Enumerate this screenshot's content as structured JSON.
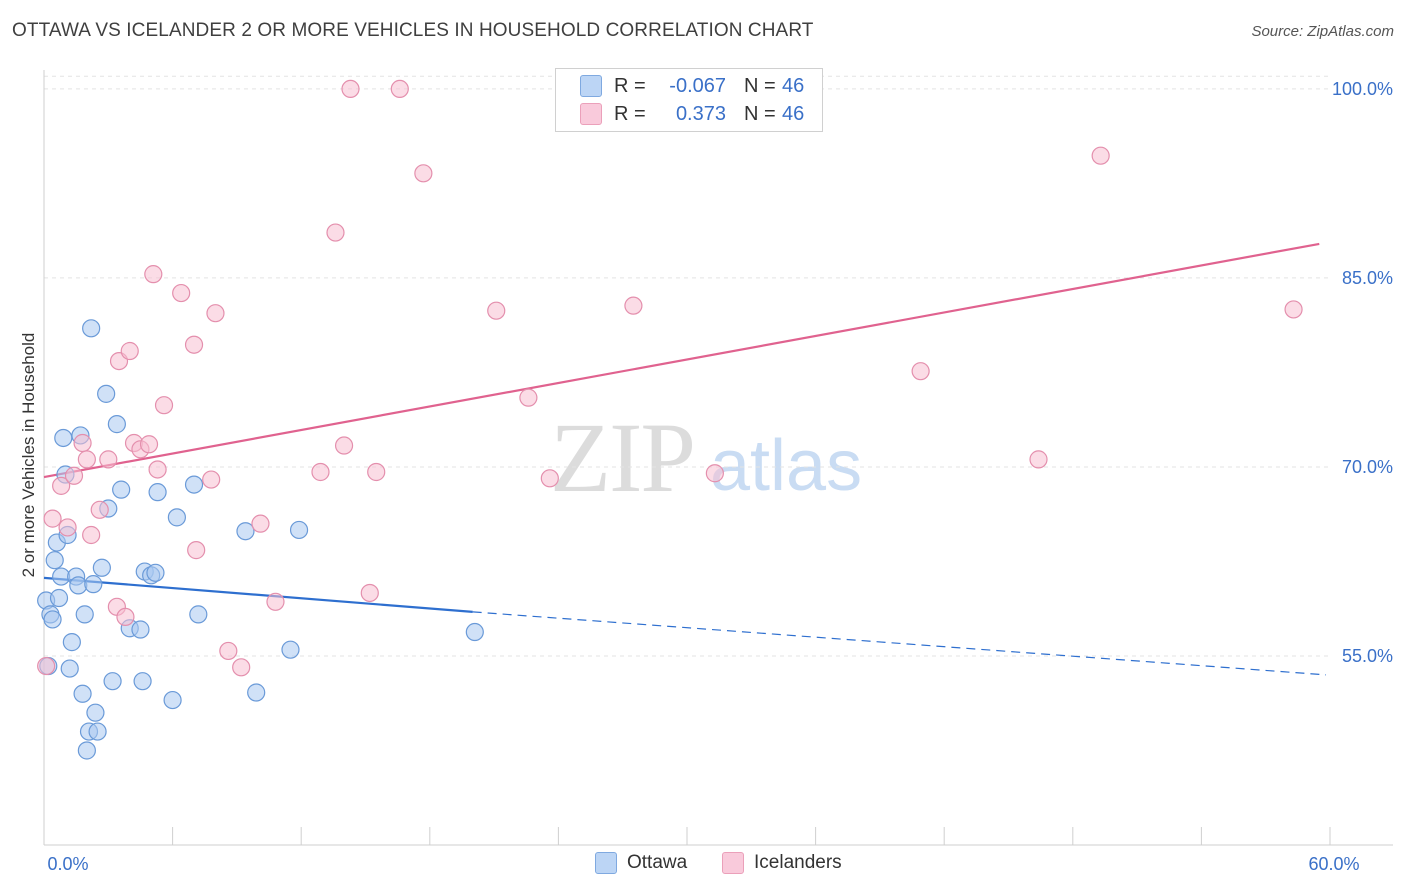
{
  "header": {
    "title": "OTTAWA VS ICELANDER 2 OR MORE VEHICLES IN HOUSEHOLD CORRELATION CHART",
    "source": "Source: ZipAtlas.com"
  },
  "watermark": {
    "zip": "ZIP",
    "atlas": "atlas"
  },
  "legend": {
    "r_label": "R =",
    "n_label": "N =",
    "rows": [
      {
        "r": "-0.067",
        "n": "46"
      },
      {
        "r": "0.373",
        "n": "46"
      }
    ]
  },
  "bottom_legend": {
    "items": [
      "Ottawa",
      "Icelanders"
    ]
  },
  "colors": {
    "ottawa_fill": "#a9c8f0",
    "ottawa_stroke": "#6a9ad8",
    "ottawa_line": "#2e6fcf",
    "icelanders_fill": "#f7c0d2",
    "icelanders_stroke": "#e48fad",
    "icelanders_line": "#e0628f",
    "tick_text": "#3a70c8"
  },
  "chart_data": {
    "type": "scatter",
    "title": "OTTAWA VS ICELANDER 2 OR MORE VEHICLES IN HOUSEHOLD CORRELATION CHART",
    "xlabel": "",
    "ylabel": "2 or more Vehicles in Household",
    "xlim": [
      0,
      60
    ],
    "ylim": [
      40,
      101.5
    ],
    "x_tick_labels": [
      {
        "value": 0,
        "label": "0.0%"
      },
      {
        "value": 60,
        "label": "60.0%"
      }
    ],
    "y_tick_labels": [
      {
        "value": 55,
        "label": "55.0%"
      },
      {
        "value": 70,
        "label": "70.0%"
      },
      {
        "value": 85,
        "label": "85.0%"
      },
      {
        "value": 100,
        "label": "100.0%"
      }
    ],
    "grid": true,
    "series": [
      {
        "name": "Ottawa",
        "r": -0.067,
        "n": 46,
        "trend": {
          "x0": 0,
          "y0": 61.2,
          "x1": 20.0,
          "y1": 58.5,
          "dash_to_x": 60,
          "dash_to_y": 53.5
        },
        "points": [
          [
            0.1,
            59.4
          ],
          [
            0.2,
            54.2
          ],
          [
            0.3,
            58.3
          ],
          [
            0.4,
            57.9
          ],
          [
            0.5,
            62.6
          ],
          [
            0.6,
            64.0
          ],
          [
            0.7,
            59.6
          ],
          [
            0.8,
            61.3
          ],
          [
            0.9,
            72.3
          ],
          [
            1.0,
            69.4
          ],
          [
            1.1,
            64.6
          ],
          [
            1.2,
            54.0
          ],
          [
            1.3,
            56.1
          ],
          [
            1.5,
            61.3
          ],
          [
            1.6,
            60.6
          ],
          [
            1.7,
            72.5
          ],
          [
            1.8,
            52.0
          ],
          [
            1.9,
            58.3
          ],
          [
            2.0,
            47.5
          ],
          [
            2.1,
            49.0
          ],
          [
            2.2,
            81.0
          ],
          [
            2.3,
            60.7
          ],
          [
            2.4,
            50.5
          ],
          [
            2.5,
            49.0
          ],
          [
            2.7,
            62.0
          ],
          [
            2.9,
            75.8
          ],
          [
            3.0,
            66.7
          ],
          [
            3.2,
            53.0
          ],
          [
            3.4,
            73.4
          ],
          [
            3.6,
            68.2
          ],
          [
            4.0,
            57.2
          ],
          [
            4.5,
            57.1
          ],
          [
            4.6,
            53.0
          ],
          [
            4.7,
            61.7
          ],
          [
            5.0,
            61.4
          ],
          [
            5.2,
            61.6
          ],
          [
            5.3,
            68.0
          ],
          [
            6.0,
            51.5
          ],
          [
            6.2,
            66.0
          ],
          [
            7.0,
            68.6
          ],
          [
            7.2,
            58.3
          ],
          [
            9.4,
            64.9
          ],
          [
            9.9,
            52.1
          ],
          [
            11.5,
            55.5
          ],
          [
            11.9,
            65.0
          ],
          [
            20.1,
            56.9
          ]
        ]
      },
      {
        "name": "Icelanders",
        "r": 0.373,
        "n": 46,
        "trend": {
          "x0": 0,
          "y0": 69.2,
          "x1": 59.5,
          "y1": 87.7
        },
        "points": [
          [
            0.1,
            54.2
          ],
          [
            0.4,
            65.9
          ],
          [
            0.8,
            68.5
          ],
          [
            1.1,
            65.2
          ],
          [
            1.4,
            69.3
          ],
          [
            1.8,
            71.9
          ],
          [
            2.0,
            70.6
          ],
          [
            2.2,
            64.6
          ],
          [
            2.6,
            66.6
          ],
          [
            3.0,
            70.6
          ],
          [
            3.4,
            58.9
          ],
          [
            3.5,
            78.4
          ],
          [
            3.8,
            58.1
          ],
          [
            4.0,
            79.2
          ],
          [
            4.2,
            71.9
          ],
          [
            4.5,
            71.4
          ],
          [
            4.9,
            71.8
          ],
          [
            5.1,
            85.3
          ],
          [
            5.3,
            69.8
          ],
          [
            5.6,
            74.9
          ],
          [
            6.4,
            83.8
          ],
          [
            7.0,
            79.7
          ],
          [
            7.1,
            63.4
          ],
          [
            7.8,
            69.0
          ],
          [
            8.0,
            82.2
          ],
          [
            8.6,
            55.4
          ],
          [
            9.2,
            54.1
          ],
          [
            10.1,
            65.5
          ],
          [
            10.8,
            59.3
          ],
          [
            12.9,
            69.6
          ],
          [
            13.6,
            88.6
          ],
          [
            14.0,
            71.7
          ],
          [
            14.3,
            100.0
          ],
          [
            15.2,
            60.0
          ],
          [
            15.5,
            69.6
          ],
          [
            16.6,
            100.0
          ],
          [
            17.7,
            93.3
          ],
          [
            21.1,
            82.4
          ],
          [
            22.6,
            75.5
          ],
          [
            23.6,
            69.1
          ],
          [
            27.5,
            82.8
          ],
          [
            31.3,
            69.5
          ],
          [
            40.9,
            77.6
          ],
          [
            46.4,
            70.6
          ],
          [
            49.3,
            94.7
          ],
          [
            58.3,
            82.5
          ]
        ]
      }
    ]
  }
}
